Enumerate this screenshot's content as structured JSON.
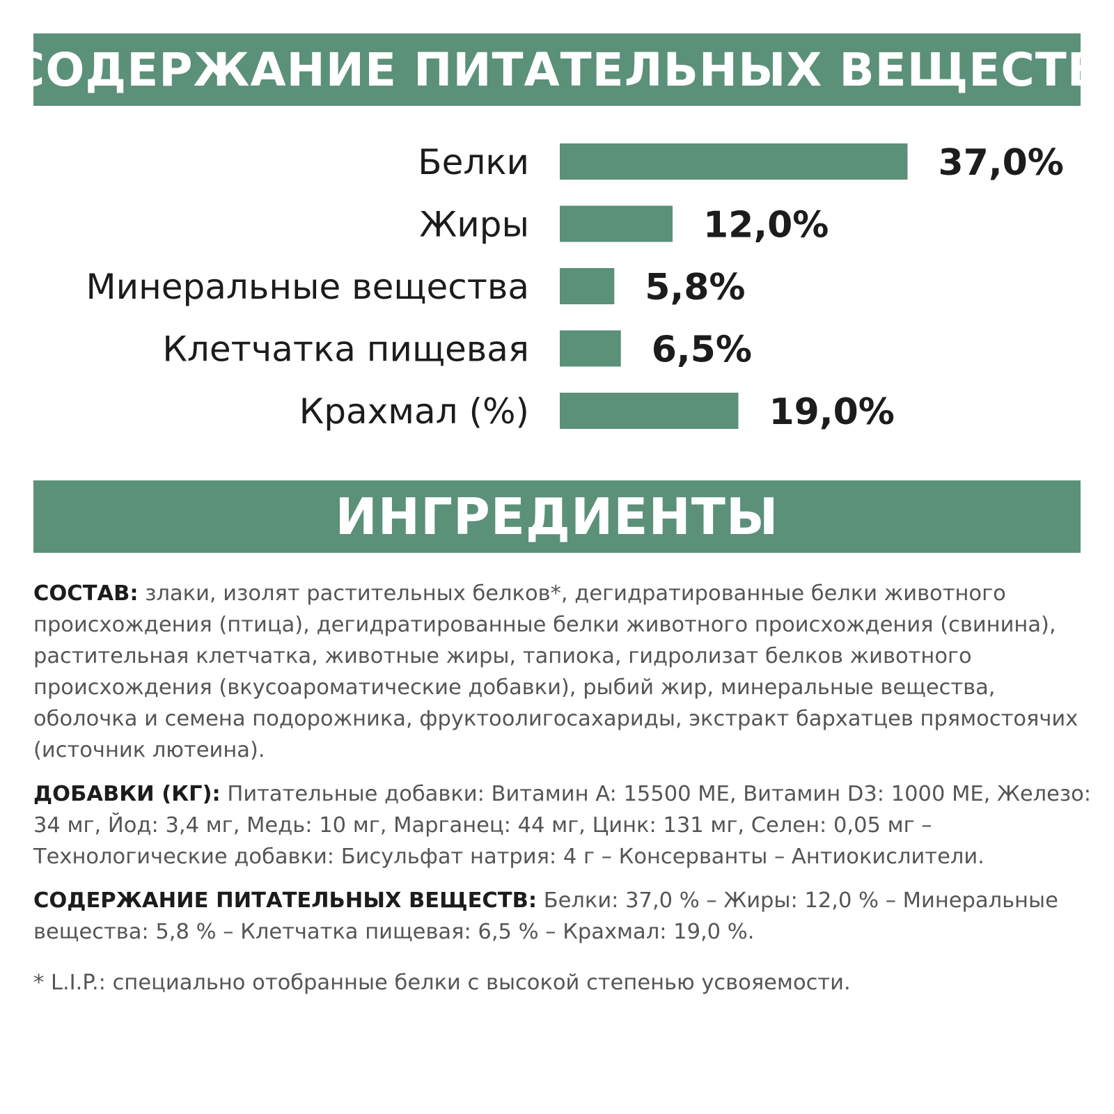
{
  "colors": {
    "accent": "#5b9079",
    "text": "#1c1c1c",
    "muted_text": "#555555",
    "banner_text": "#ffffff"
  },
  "banners": {
    "nutrients": "СОДЕРЖАНИЕ ПИТАТЕЛЬНЫХ ВЕЩЕСТВ",
    "ingredients": "ИНГРЕДИЕНТЫ"
  },
  "chart_data": {
    "type": "bar",
    "orientation": "horizontal",
    "categories": [
      "Белки",
      "Жиры",
      "Минеральные вещества",
      "Клетчатка пищевая",
      "Крахмал (%)"
    ],
    "values": [
      37.0,
      12.0,
      5.8,
      6.5,
      19.0
    ],
    "value_labels": [
      "37,0%",
      "12,0%",
      "5,8%",
      "6,5%",
      "19,0%"
    ],
    "xlim": [
      0,
      40
    ],
    "unit": "%",
    "grid": false,
    "legend": "none"
  },
  "ingredients": {
    "composition": {
      "head": "СОСТАВ:",
      "text": " злаки, изолят растительных белков*, дегидратированные белки животного происхождения (птица), дегидратированные белки животного происхождения (свинина), растительная клетчатка, животные жиры, тапиока, гидролизат белков животного происхождения (вкусоароматические добавки), рыбий жир, минеральные вещества, оболочка и семена подорожника, фруктоолигосахариды, экстракт бархатцев прямостоячих (источник лютеина)."
    },
    "additives": {
      "head": "ДОБАВКИ (КГ):",
      "text": " Питательные добавки: Витамин A: 15500 МЕ, Витамин D3: 1000 МЕ, Железо: 34 мг, Йод: 3,4 мг, Медь: 10 мг, Марганец: 44 мг, Цинк: 131 мг, Селен: 0,05 мг – Технологические добавки: Бисульфат натрия: 4 г – Консерванты – Антиокислители."
    },
    "nutrients": {
      "head": "СОДЕРЖАНИЕ ПИТАТЕЛЬНЫХ ВЕЩЕСТВ:",
      "text": " Белки: 37,0 % – Жиры: 12,0 % – Минеральные вещества: 5,8 % – Клетчатка пищевая: 6,5 % – Крахмал: 19,0 %."
    },
    "footnote": "* L.I.P.: специально отобранные белки с высокой степенью усвояемости."
  }
}
